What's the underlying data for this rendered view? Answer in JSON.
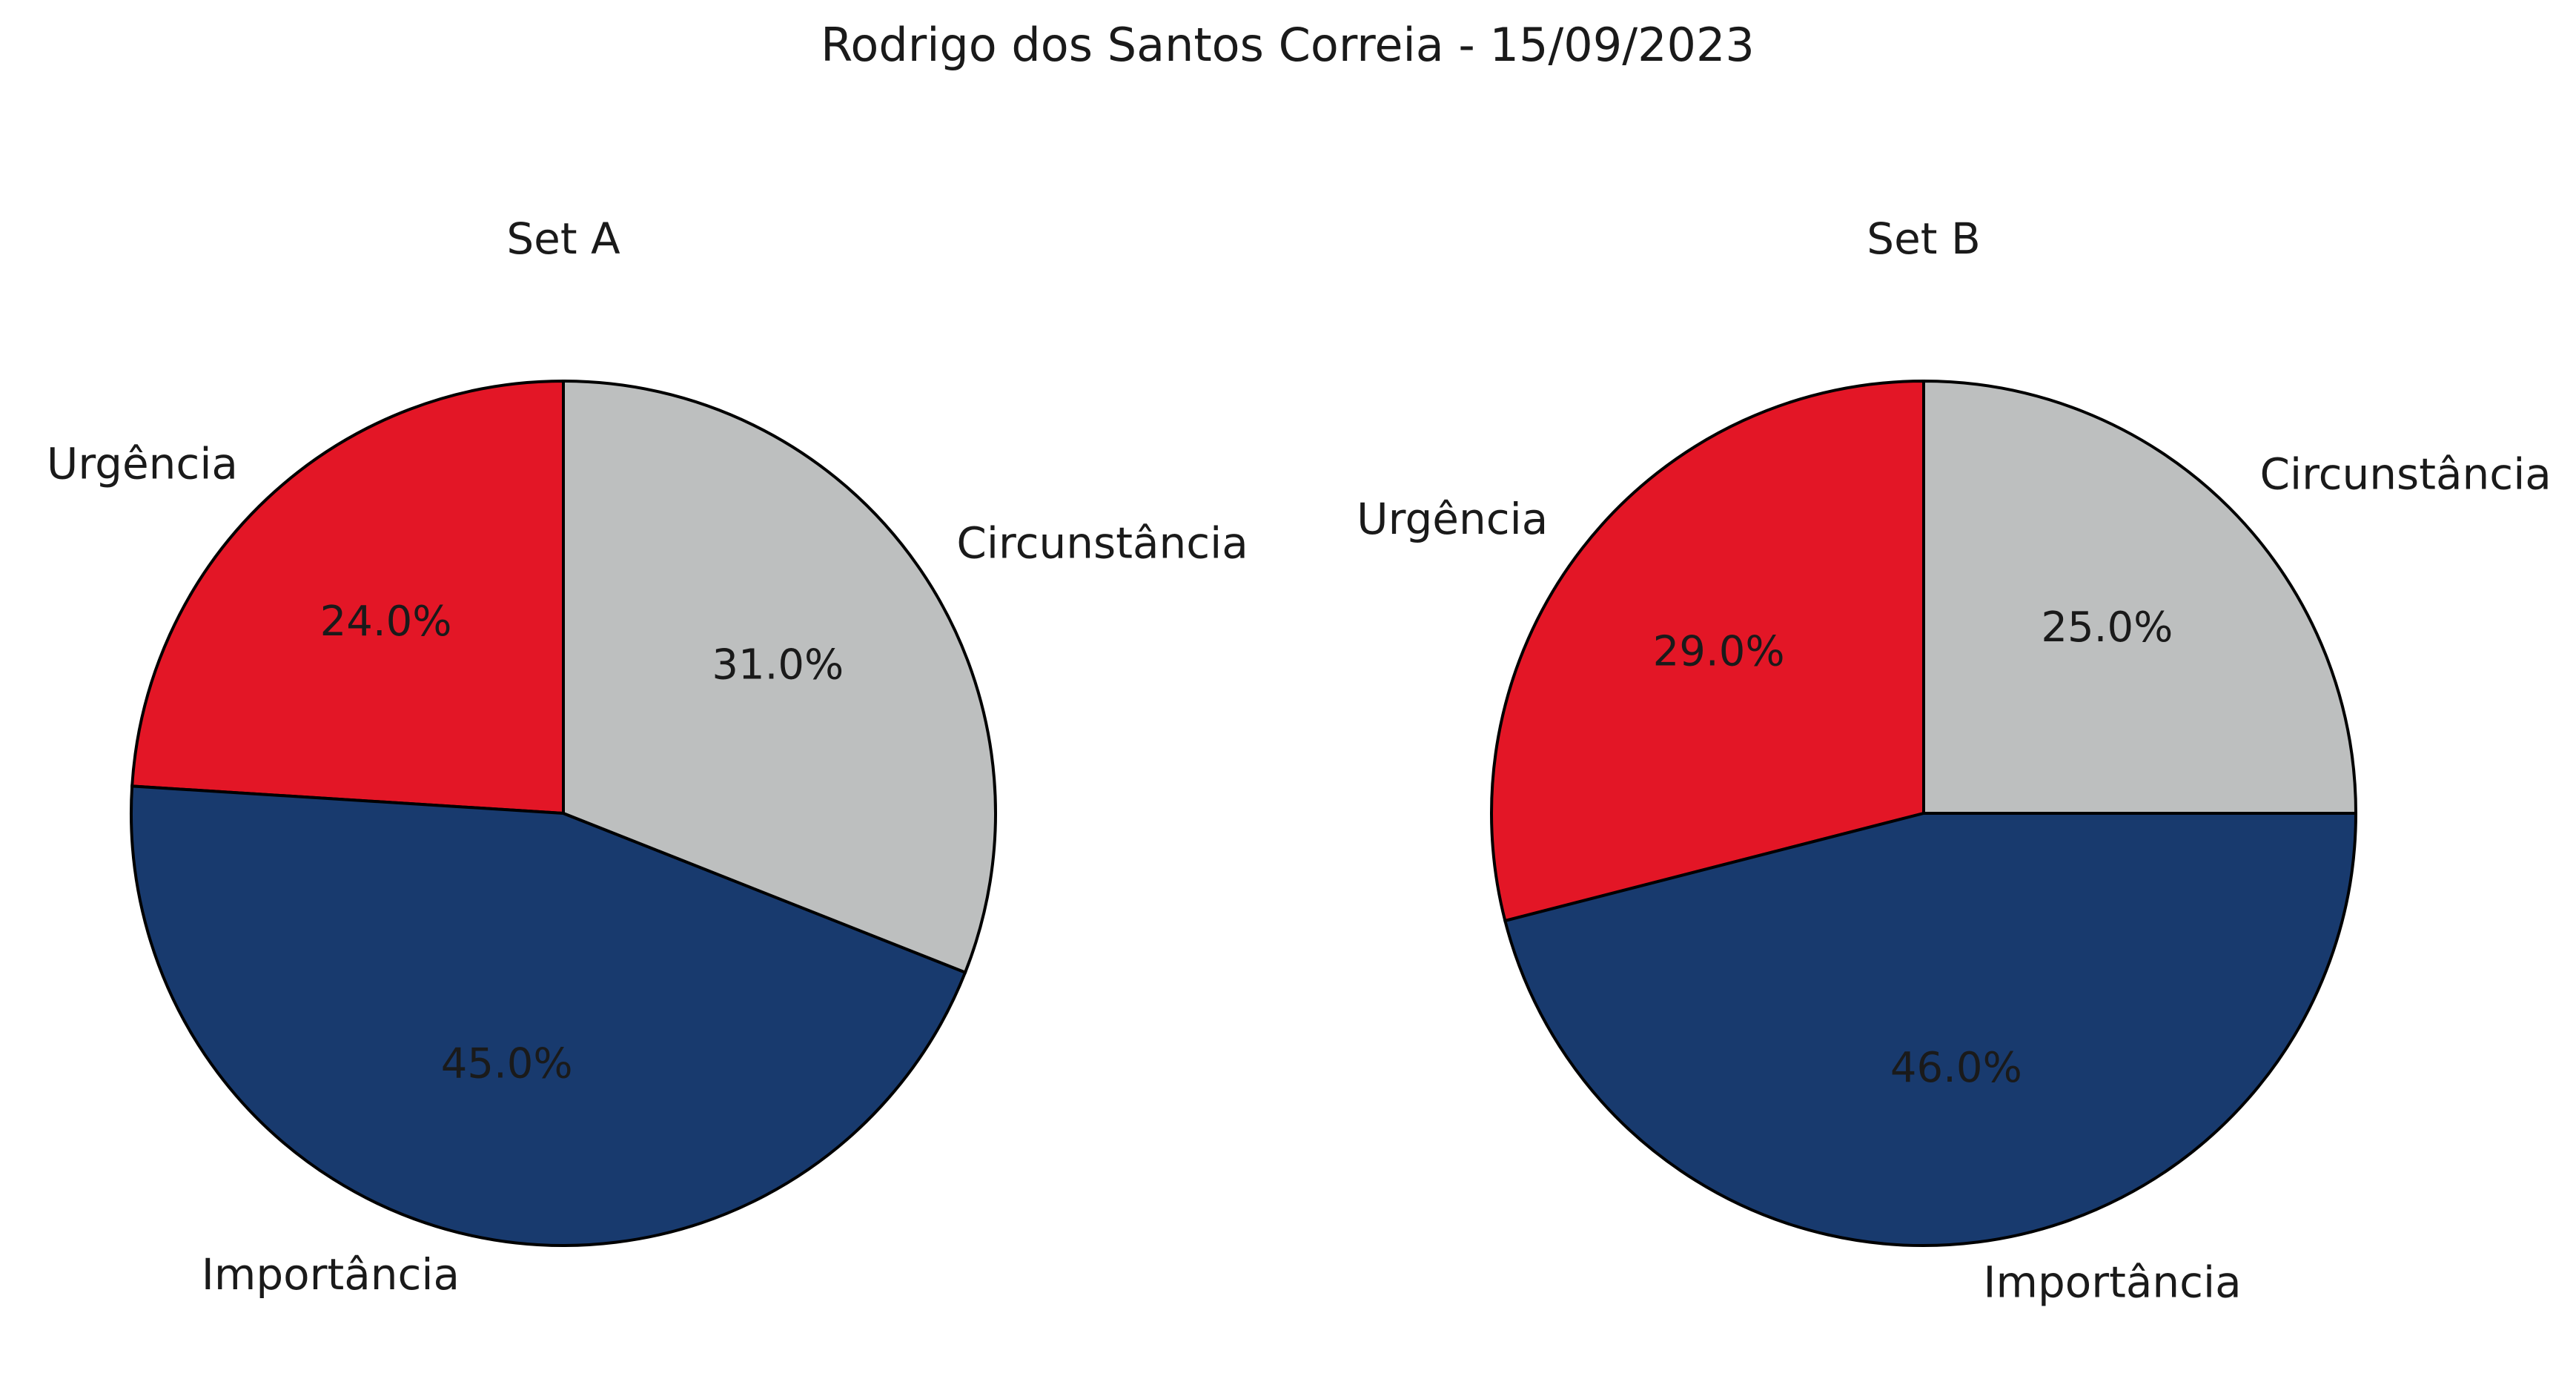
{
  "title": "Rodrigo dos Santos Correia - 15/09/2023",
  "chart_data": [
    {
      "type": "pie",
      "title": "Set A",
      "start_angle_deg": 90,
      "direction": "counterclockwise",
      "categories": [
        "Urgência",
        "Importância",
        "Circunstância"
      ],
      "values": [
        24.0,
        45.0,
        31.0
      ],
      "value_labels": [
        "24.0%",
        "45.0%",
        "31.0%"
      ],
      "colors": [
        "#e31626",
        "#183a6e",
        "#bdbfbf"
      ]
    },
    {
      "type": "pie",
      "title": "Set B",
      "start_angle_deg": 90,
      "direction": "counterclockwise",
      "categories": [
        "Urgência",
        "Importância",
        "Circunstância"
      ],
      "values": [
        29.0,
        46.0,
        25.0
      ],
      "value_labels": [
        "29.0%",
        "46.0%",
        "25.0%"
      ],
      "colors": [
        "#e31626",
        "#183a6e",
        "#bdbfbf"
      ]
    }
  ]
}
